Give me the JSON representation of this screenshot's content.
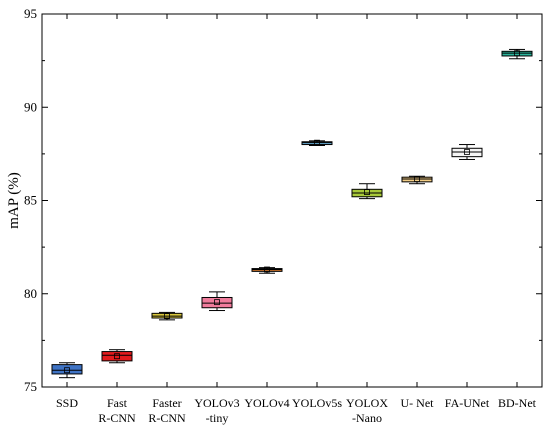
{
  "chart_data": {
    "type": "boxplot",
    "ylabel": "mAP (%)",
    "ylim": [
      75,
      95
    ],
    "yticks": [
      75,
      80,
      85,
      90,
      95
    ],
    "grid": false,
    "legend": "none",
    "categories": [
      [
        "SSD"
      ],
      [
        "Fast",
        "R-CNN"
      ],
      [
        "Faster",
        "R-CNN"
      ],
      [
        "YOLOv3",
        "-tiny"
      ],
      [
        "YOLOv4"
      ],
      [
        "YOLOv5s"
      ],
      [
        "YOLOX",
        "-Nano"
      ],
      [
        "U- Net"
      ],
      [
        "FA-UNet"
      ],
      [
        "BD-Net"
      ]
    ],
    "boxes": [
      {
        "min": 75.5,
        "q1": 75.7,
        "median": 75.9,
        "mean": 75.9,
        "q3": 76.2,
        "max": 76.3,
        "color": "#3f73c4"
      },
      {
        "min": 76.3,
        "q1": 76.4,
        "median": 76.7,
        "mean": 76.65,
        "q3": 76.9,
        "max": 77.0,
        "color": "#e31a1c"
      },
      {
        "min": 78.6,
        "q1": 78.7,
        "median": 78.8,
        "mean": 78.8,
        "q3": 78.95,
        "max": 79.0,
        "color": "#d9c73c"
      },
      {
        "min": 79.1,
        "q1": 79.25,
        "median": 79.5,
        "mean": 79.55,
        "q3": 79.8,
        "max": 80.1,
        "color": "#f07c9c"
      },
      {
        "min": 81.1,
        "q1": 81.2,
        "median": 81.3,
        "mean": 81.3,
        "q3": 81.35,
        "max": 81.4,
        "color": "#c8702a"
      },
      {
        "min": 87.95,
        "q1": 88.0,
        "median": 88.1,
        "mean": 88.1,
        "q3": 88.15,
        "max": 88.2,
        "color": "#6aaed6"
      },
      {
        "min": 85.1,
        "q1": 85.2,
        "median": 85.4,
        "mean": 85.45,
        "q3": 85.6,
        "max": 85.9,
        "color": "#a8c93a"
      },
      {
        "min": 85.9,
        "q1": 86.0,
        "median": 86.15,
        "mean": 86.15,
        "q3": 86.25,
        "max": 86.3,
        "color": "#f2cd86"
      },
      {
        "min": 87.2,
        "q1": 87.35,
        "median": 87.6,
        "mean": 87.6,
        "q3": 87.8,
        "max": 88.0,
        "color": "#f5f5f5"
      },
      {
        "min": 92.6,
        "q1": 92.75,
        "median": 92.9,
        "mean": 92.9,
        "q3": 93.0,
        "max": 93.1,
        "color": "#2ab39a"
      }
    ]
  }
}
